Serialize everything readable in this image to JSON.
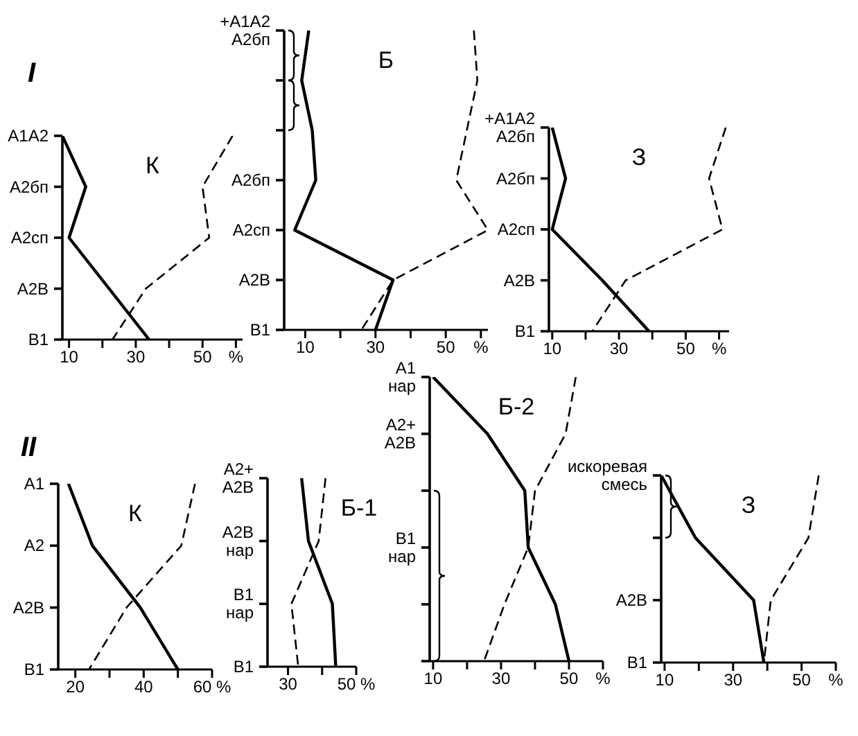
{
  "chart_data": [
    {
      "type": "line",
      "title": "К",
      "annotations": [
        "I"
      ],
      "orientation": "horizontal",
      "marker": "none",
      "categories": [
        "A1A2",
        "A2бп",
        "A2сп",
        "A2В",
        "В1"
      ],
      "xlim": [
        8,
        62
      ],
      "xticks": [
        10,
        {
          "value": 20,
          "label": null
        },
        30,
        {
          "value": 40,
          "label": null
        },
        50,
        {
          "value": 60,
          "label": "%"
        }
      ],
      "series": [
        {
          "color": "#000000",
          "line_style": "solid",
          "values": [
            8,
            15,
            10,
            22,
            34
          ]
        },
        {
          "color": "#000000",
          "line_style": "dashed",
          "values": [
            59,
            50,
            52,
            33,
            23
          ]
        }
      ]
    },
    {
      "type": "line",
      "title": "Б",
      "orientation": "horizontal",
      "marker": "none",
      "categories": [
        "+A1A2\nA2бп",
        null,
        null,
        "A2бп",
        "A2сп",
        "A2В",
        "В1"
      ],
      "xlim": [
        4,
        62
      ],
      "xticks": [
        10,
        {
          "value": 20,
          "label": null
        },
        30,
        {
          "value": 40,
          "label": null
        },
        50,
        {
          "value": 60,
          "label": "%"
        }
      ],
      "series": [
        {
          "color": "#000000",
          "line_style": "solid",
          "values": [
            11,
            9,
            12,
            13,
            7,
            35,
            30
          ]
        },
        {
          "color": "#000000",
          "line_style": "dashed",
          "values": [
            58,
            59,
            56,
            53,
            62,
            35,
            26
          ]
        }
      ]
    },
    {
      "type": "line",
      "title": "З",
      "orientation": "horizontal",
      "marker": "none",
      "categories": [
        "+A1A2\nA2бп",
        "A2бп",
        "A2сп",
        "A2В",
        "В1"
      ],
      "xlim": [
        9,
        63
      ],
      "xticks": [
        10,
        {
          "value": 20,
          "label": null
        },
        30,
        {
          "value": 40,
          "label": null
        },
        50,
        {
          "value": 60,
          "label": "%"
        }
      ],
      "series": [
        {
          "color": "#000000",
          "line_style": "solid",
          "values": [
            10,
            14,
            10,
            25,
            39
          ]
        },
        {
          "color": "#000000",
          "line_style": "dashed",
          "values": [
            62,
            57,
            61,
            32,
            22
          ]
        }
      ]
    },
    {
      "type": "line",
      "title": "К",
      "annotations": [
        "II"
      ],
      "orientation": "horizontal",
      "marker": "none",
      "categories": [
        "A1",
        "A2",
        "A2В",
        "В1"
      ],
      "xlim": [
        15,
        60
      ],
      "xticks": [
        20,
        {
          "value": 30,
          "label": null
        },
        40,
        {
          "value": 50,
          "label": null
        },
        {
          "value": 60,
          "label": "60 %"
        }
      ],
      "series": [
        {
          "color": "#000000",
          "line_style": "solid",
          "values": [
            18,
            25,
            39,
            50
          ]
        },
        {
          "color": "#000000",
          "line_style": "dashed",
          "values": [
            55,
            51,
            35,
            24
          ]
        }
      ]
    },
    {
      "type": "line",
      "title": "Б-1",
      "orientation": "horizontal",
      "marker": "none",
      "categories": [
        "A2+\nA2В",
        "A2В\nнар",
        "В1\nнар",
        "В1"
      ],
      "xlim": [
        24,
        50
      ],
      "xticks": [
        30,
        {
          "value": 40,
          "label": null
        },
        {
          "value": 50,
          "label": "50 %"
        }
      ],
      "series": [
        {
          "color": "#000000",
          "line_style": "solid",
          "values": [
            34,
            36,
            43,
            44
          ]
        },
        {
          "color": "#000000",
          "line_style": "dashed",
          "values": [
            41,
            39,
            31,
            33
          ]
        }
      ]
    },
    {
      "type": "line",
      "title": "Б-2",
      "orientation": "horizontal",
      "marker": "none",
      "categories": [
        "A1\nнар",
        "A2+\nA2В",
        null,
        "В1\nнар",
        null,
        null
      ],
      "xlim": [
        9,
        60
      ],
      "xticks": [
        10,
        {
          "value": 20,
          "label": null
        },
        30,
        {
          "value": 40,
          "label": null
        },
        50,
        {
          "value": 60,
          "label": "%"
        }
      ],
      "series": [
        {
          "color": "#000000",
          "line_style": "solid",
          "values": [
            10,
            26,
            37,
            38,
            46,
            50
          ]
        },
        {
          "color": "#000000",
          "line_style": "dashed",
          "values": [
            52,
            49,
            40,
            38,
            31,
            25
          ]
        }
      ]
    },
    {
      "type": "line",
      "title": "З",
      "orientation": "horizontal",
      "marker": "none",
      "categories": [
        "искоревая\nсмесь",
        null,
        "A2В",
        "В1"
      ],
      "xlim": [
        9,
        60
      ],
      "xticks": [
        10,
        {
          "value": 20,
          "label": null
        },
        30,
        {
          "value": 40,
          "label": null
        },
        50,
        {
          "value": 60,
          "label": "%"
        }
      ],
      "series": [
        {
          "color": "#000000",
          "line_style": "solid",
          "values": [
            9,
            19,
            36,
            39
          ]
        },
        {
          "color": "#000000",
          "line_style": "dashed",
          "values": [
            55,
            52,
            41,
            39
          ]
        }
      ]
    }
  ]
}
